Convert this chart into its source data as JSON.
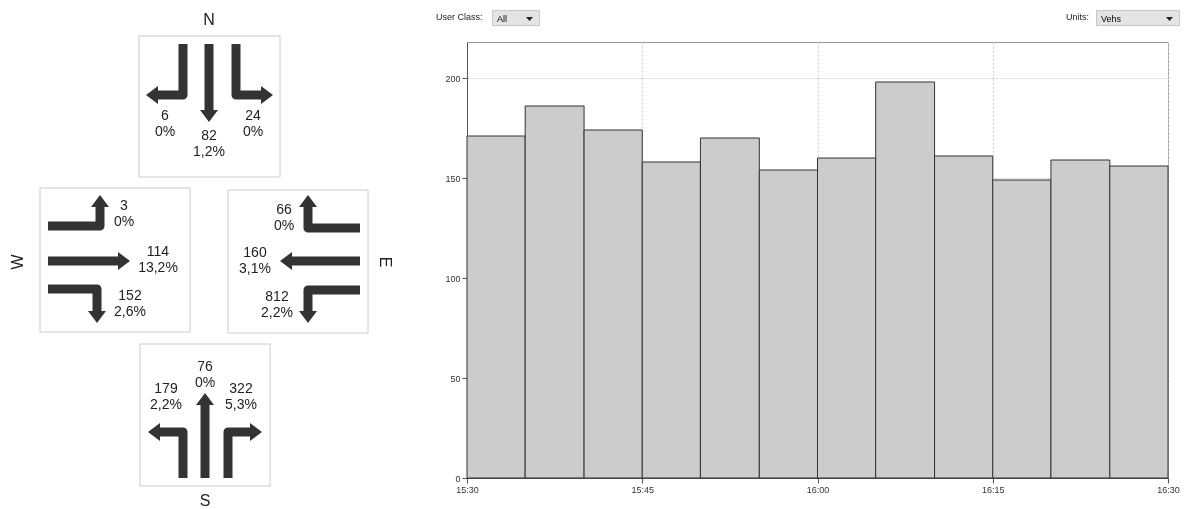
{
  "chart_data": [
    {
      "type": "other",
      "annotations": [
        "N",
        "6",
        "0%",
        "82",
        "1,2%",
        "24",
        "0%",
        "W",
        "3",
        "0%",
        "114",
        "13,2%",
        "152",
        "2,6%",
        "E",
        "66",
        "0%",
        "160",
        "3,1%",
        "812",
        "2,2%",
        "S",
        "179",
        "2,2%",
        "76",
        "0%",
        "322",
        "5,3%"
      ]
    },
    {
      "type": "histogram",
      "bins": [
        15.5,
        15.583,
        15.667,
        15.75,
        15.833,
        15.917,
        16,
        16.083,
        16.167,
        16.25,
        16.333,
        16.417,
        16.5
      ],
      "values": [
        171,
        186,
        174,
        158,
        170,
        154,
        160,
        198,
        161,
        149,
        159,
        156
      ],
      "color": "#cccccc",
      "xlim": [
        15.5,
        16.5
      ],
      "xticks": [
        {
          "value": 15.5,
          "label": "15:30"
        },
        {
          "value": 15.75,
          "label": "15:45"
        },
        {
          "value": 16,
          "label": "16:00"
        },
        {
          "value": 16.25,
          "label": "16:15"
        },
        {
          "value": 16.5,
          "label": "16:30"
        }
      ],
      "ylim": [
        0,
        218
      ],
      "yticks": [
        0,
        50,
        100,
        150,
        200
      ],
      "grid": true,
      "annotations": [
        "User Class:",
        "All",
        "Units:",
        "Vehs"
      ]
    }
  ]
}
